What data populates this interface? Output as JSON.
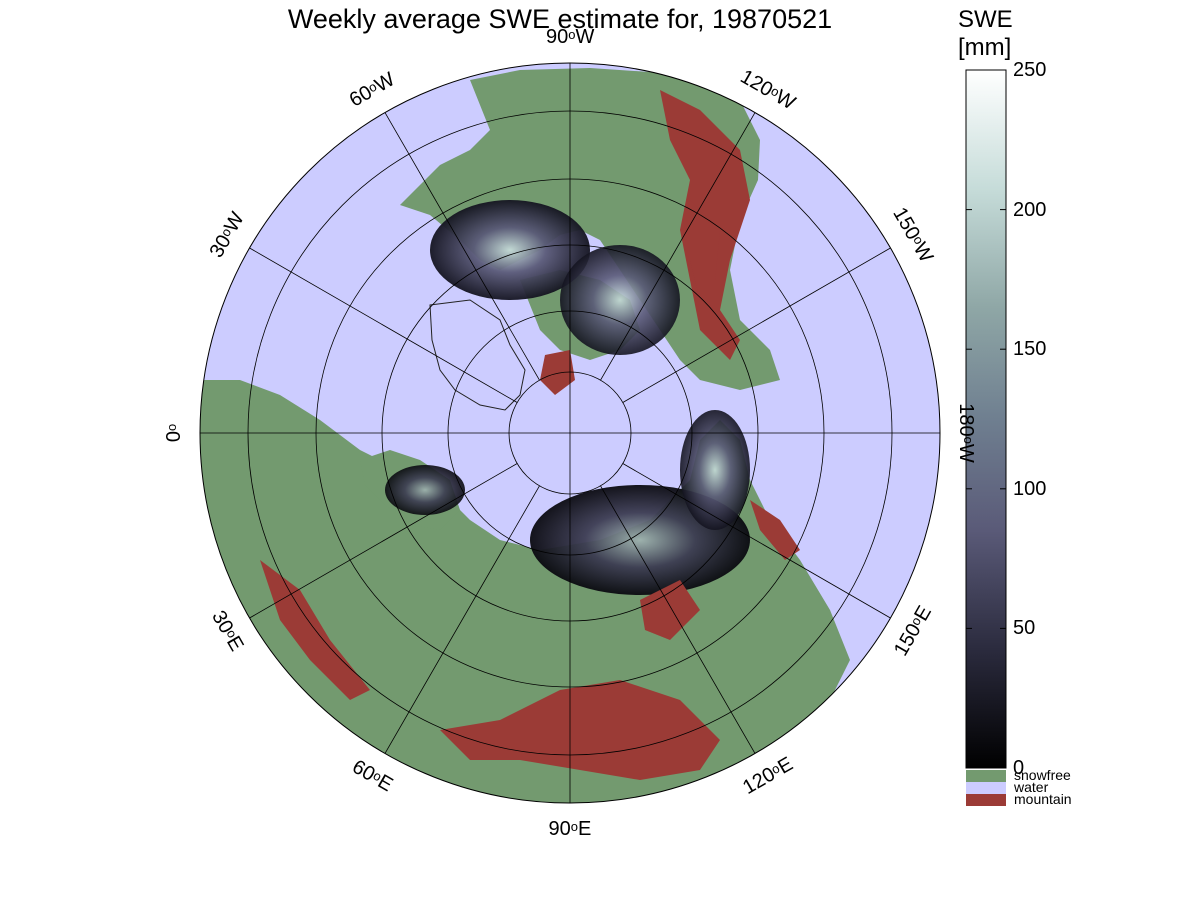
{
  "title": "Weekly average SWE estimate for, 19870521",
  "colorbar": {
    "title_line1": "SWE",
    "title_line2": "[mm]",
    "min": 0,
    "max": 250,
    "ticks": [
      "0",
      "50",
      "100",
      "150",
      "200",
      "250"
    ],
    "gradient_colors": [
      "#000000",
      "#2b2b3e",
      "#5a5a78",
      "#6f7f90",
      "#8fa7a6",
      "#c6dcd9",
      "#ffffff"
    ]
  },
  "legend": [
    {
      "label": "snowfree",
      "color": "#739a6f"
    },
    {
      "label": "water",
      "color": "#ccccff"
    },
    {
      "label": "mountain",
      "color": "#9b3b36"
    }
  ],
  "map": {
    "projection": "north polar stereographic",
    "longitude_labels": [
      {
        "deg": "90",
        "dir": "W"
      },
      {
        "deg": "120",
        "dir": "W"
      },
      {
        "deg": "150",
        "dir": "W"
      },
      {
        "deg": "180",
        "dir": "W"
      },
      {
        "deg": "150",
        "dir": "E"
      },
      {
        "deg": "120",
        "dir": "E"
      },
      {
        "deg": "90",
        "dir": "E"
      },
      {
        "deg": "60",
        "dir": "E"
      },
      {
        "deg": "30",
        "dir": "E"
      },
      {
        "deg": "0",
        "dir": ""
      },
      {
        "deg": "30",
        "dir": "W"
      },
      {
        "deg": "60",
        "dir": "W"
      }
    ]
  }
}
